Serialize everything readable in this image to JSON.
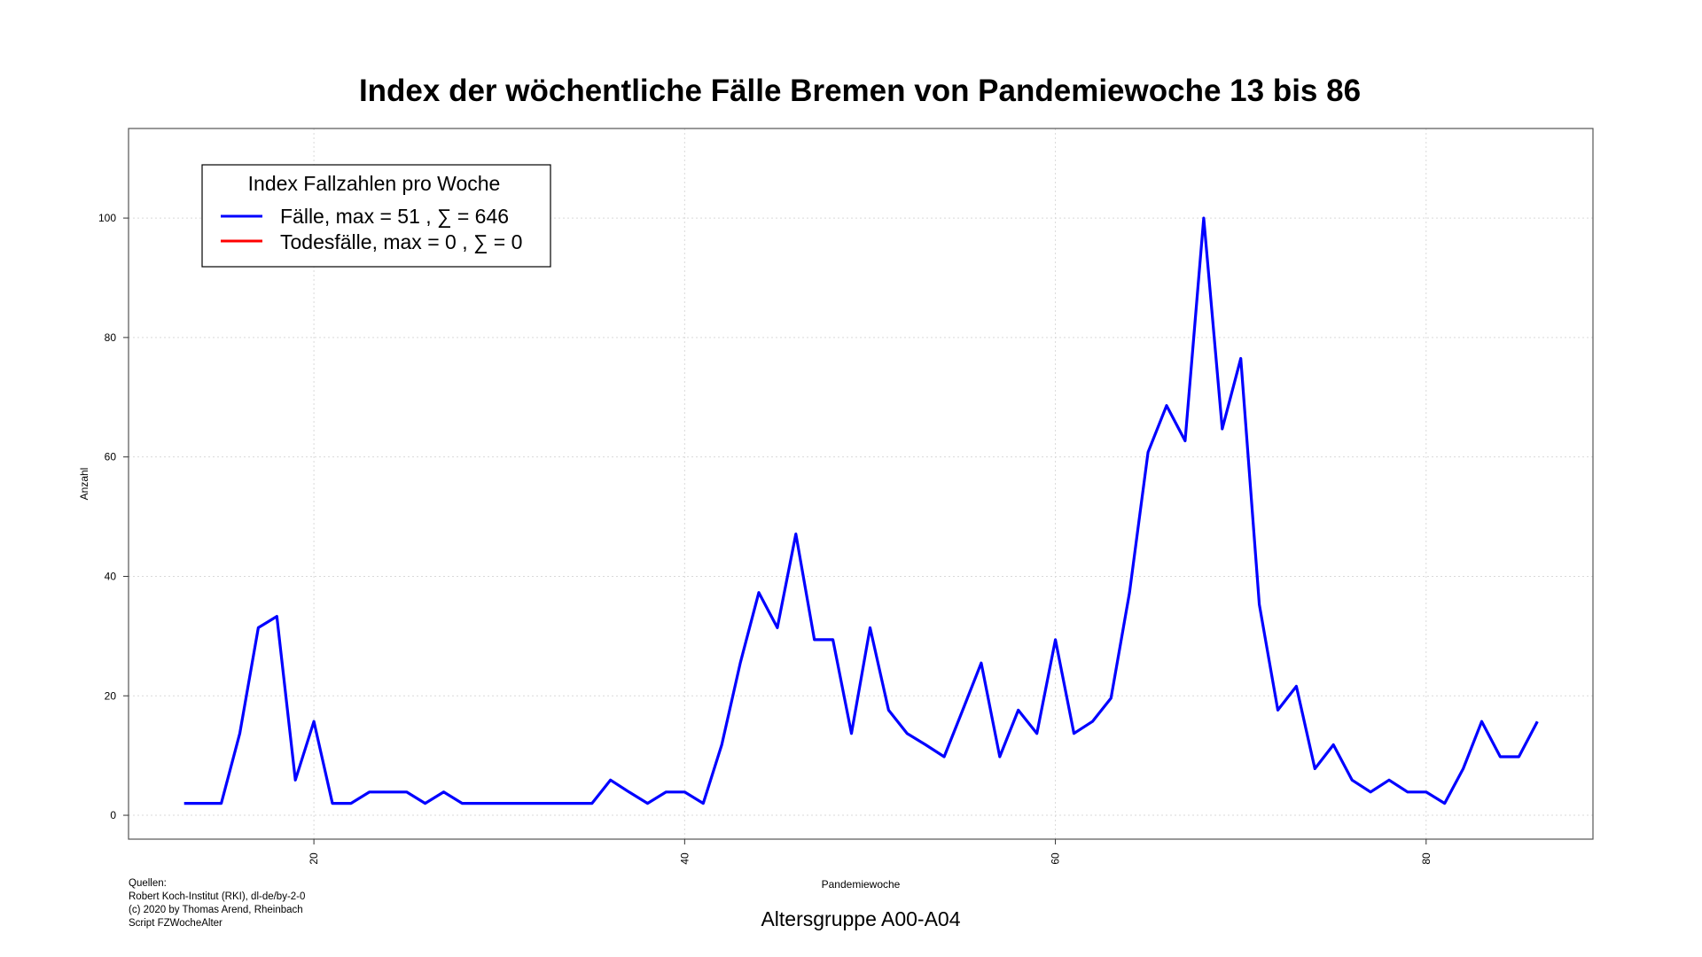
{
  "chart_data": {
    "type": "line",
    "title": "Index der wöchentliche Fälle Bremen von Pandemiewoche 13 bis 86",
    "xlabel": "Pandemiewoche",
    "ylabel": "Anzahl",
    "subtitle": "Altersgruppe A00-A04",
    "xlim": [
      10,
      89
    ],
    "ylim": [
      -4,
      115
    ],
    "x_ticks": [
      20,
      40,
      60,
      80
    ],
    "y_ticks": [
      0,
      20,
      40,
      60,
      80,
      100
    ],
    "grid": true,
    "legend": {
      "title": "Index Fallzahlen pro Woche",
      "position": "top-left",
      "entries": [
        {
          "label": "Fälle, max = 51 ,  ∑  = 646",
          "color": "#0000ff"
        },
        {
          "label": "Todesfälle, max = 0 ,  ∑  = 0",
          "color": "#ff0000"
        }
      ]
    },
    "series": [
      {
        "name": "Fälle",
        "color": "#0000ff",
        "x": [
          13,
          14,
          15,
          16,
          17,
          18,
          19,
          20,
          21,
          22,
          23,
          24,
          25,
          26,
          27,
          28,
          29,
          30,
          31,
          32,
          33,
          34,
          35,
          36,
          37,
          38,
          39,
          40,
          41,
          42,
          43,
          44,
          45,
          46,
          47,
          48,
          49,
          50,
          51,
          52,
          53,
          54,
          55,
          56,
          57,
          58,
          59,
          60,
          61,
          62,
          63,
          64,
          65,
          66,
          67,
          68,
          69,
          70,
          71,
          72,
          73,
          74,
          75,
          76,
          77,
          78,
          79,
          80,
          81,
          82,
          83,
          84,
          85,
          86
        ],
        "y": [
          2,
          2,
          2,
          13.7,
          31.4,
          33.3,
          5.9,
          15.7,
          2,
          2,
          3.9,
          3.9,
          3.9,
          2,
          3.9,
          2,
          2,
          2,
          2,
          2,
          2,
          2,
          2,
          5.9,
          3.9,
          2,
          3.9,
          3.9,
          2,
          11.8,
          25.5,
          37.3,
          31.4,
          47.1,
          29.4,
          29.4,
          13.7,
          31.4,
          17.6,
          13.7,
          11.8,
          9.8,
          17.6,
          25.5,
          9.8,
          17.6,
          13.7,
          29.4,
          13.7,
          15.7,
          19.6,
          37.3,
          60.8,
          68.6,
          62.7,
          100,
          64.7,
          76.5,
          35.3,
          17.6,
          21.6,
          7.8,
          11.8,
          5.9,
          3.9,
          5.9,
          3.9,
          3.9,
          2,
          7.8,
          15.7,
          9.8,
          9.8,
          15.7
        ]
      },
      {
        "name": "Todesfälle",
        "color": "#ff0000",
        "x": [],
        "y": []
      }
    ]
  },
  "sources": {
    "header": "Quellen:",
    "lines": [
      "Robert Koch-Institut (RKI), dl-de/by-2-0",
      "(c) 2020 by Thomas Arend, Rheinbach",
      "Script FZWocheAlter"
    ]
  }
}
